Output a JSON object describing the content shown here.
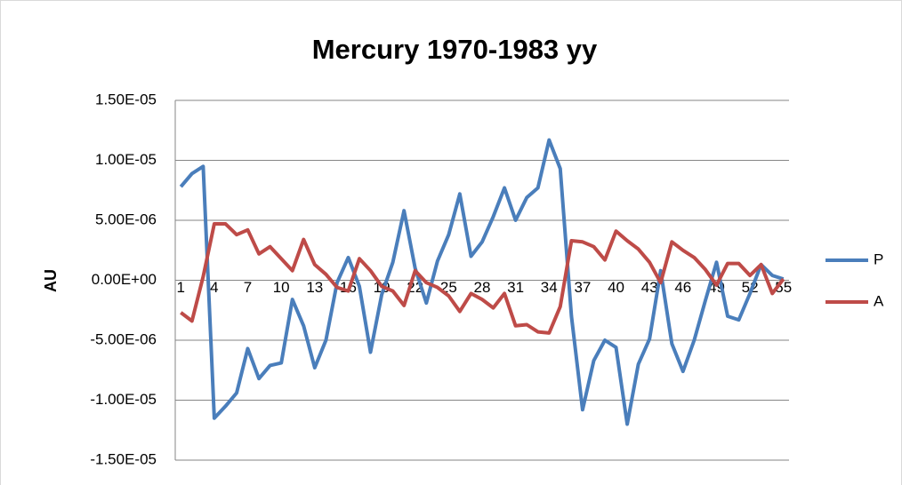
{
  "chart_data": {
    "type": "line",
    "title": "Mercury 1970-1983 yy",
    "y_label": "AU",
    "categories": [
      1,
      null,
      null,
      4,
      null,
      null,
      7,
      null,
      null,
      10,
      null,
      null,
      13,
      null,
      null,
      16,
      null,
      null,
      19,
      null,
      null,
      22,
      null,
      null,
      25,
      null,
      null,
      28,
      null,
      null,
      31,
      null,
      null,
      34,
      null,
      null,
      37,
      null,
      null,
      40,
      null,
      null,
      43,
      null,
      null,
      46,
      null,
      null,
      49,
      null,
      null,
      52,
      null,
      null,
      55
    ],
    "series": [
      {
        "name": "P",
        "color": "#4a7ebb",
        "values": [
          7.8e-06,
          8.9e-06,
          9.5e-06,
          -1.15e-05,
          -1.05e-05,
          -9.4e-06,
          -5.7e-06,
          -8.2e-06,
          -7.1e-06,
          -6.9e-06,
          -1.6e-06,
          -3.8e-06,
          -7.3e-06,
          -5e-06,
          -2e-07,
          1.9e-06,
          -5e-07,
          -6e-06,
          -1.2e-06,
          1.5e-06,
          5.8e-06,
          1e-06,
          -1.9e-06,
          1.6e-06,
          3.8e-06,
          7.2e-06,
          2e-06,
          3.2e-06,
          5.3e-06,
          7.7e-06,
          5e-06,
          6.9e-06,
          7.7e-06,
          1.17e-05,
          9.3e-06,
          -3e-06,
          -1.08e-05,
          -6.7e-06,
          -5e-06,
          -5.6e-06,
          -1.2e-05,
          -7e-06,
          -4.9e-06,
          8e-07,
          -5.3e-06,
          -7.6e-06,
          -5e-06,
          -1.7e-06,
          1.5e-06,
          -3e-06,
          -3.3e-06,
          -1.1e-06,
          1.3e-06,
          4e-07,
          1e-07
        ]
      },
      {
        "name": "A",
        "color": "#be4b48",
        "values": [
          -2.7e-06,
          -3.4e-06,
          3e-07,
          4.7e-06,
          4.7e-06,
          3.8e-06,
          4.2e-06,
          2.2e-06,
          2.8e-06,
          1.8e-06,
          8e-07,
          3.4e-06,
          1.3e-06,
          5e-07,
          -6e-07,
          -9e-07,
          1.8e-06,
          8e-07,
          -5e-07,
          -9e-07,
          -2.1e-06,
          8e-07,
          -2e-07,
          -6e-07,
          -1.3e-06,
          -2.6e-06,
          -1.1e-06,
          -1.6e-06,
          -2.3e-06,
          -1.1e-06,
          -3.8e-06,
          -3.7e-06,
          -4.3e-06,
          -4.4e-06,
          -2.2e-06,
          3.3e-06,
          3.2e-06,
          2.8e-06,
          1.7e-06,
          4.1e-06,
          3.3e-06,
          2.6e-06,
          1.5e-06,
          -2e-07,
          3.2e-06,
          2.5e-06,
          1.9e-06,
          9e-07,
          -4e-07,
          1.4e-06,
          1.4e-06,
          4e-07,
          1.3e-06,
          -1.1e-06,
          1e-07
        ]
      }
    ],
    "ylim": [
      -1.5e-05,
      1.5e-05
    ],
    "yticks": [
      {
        "value": -1.5e-05,
        "label": "-1.50E-05"
      },
      {
        "value": -1e-05,
        "label": "-1.00E-05"
      },
      {
        "value": -5e-06,
        "label": "-5.00E-06"
      },
      {
        "value": 0,
        "label": "0.00E+00"
      },
      {
        "value": 5e-06,
        "label": "5.00E-06"
      },
      {
        "value": 1e-05,
        "label": "1.00E-05"
      },
      {
        "value": 1.5e-05,
        "label": "1.50E-05"
      }
    ],
    "grid": true,
    "legend": "right"
  }
}
